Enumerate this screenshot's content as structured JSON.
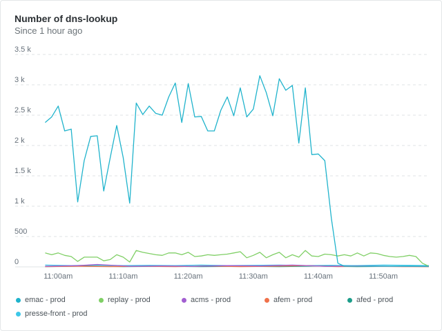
{
  "header": {
    "title": "Number of dns-lookup",
    "subtitle": "Since 1 hour ago"
  },
  "chart_data": {
    "type": "line",
    "title": "Number of dns-lookup",
    "subtitle": "Since 1 hour ago",
    "xlabel": "",
    "ylabel": "",
    "ylim": [
      0,
      3500
    ],
    "y_ticks": [
      0,
      500,
      1000,
      1500,
      2000,
      2500,
      3000,
      3500
    ],
    "y_tick_labels": [
      "0",
      "500",
      "1 k",
      "1.5 k",
      "2 k",
      "2.5 k",
      "3 k",
      "3.5 k"
    ],
    "x_range": [
      "10:57am",
      "11:57am"
    ],
    "x_ticks": [
      "11:00am",
      "11:10am",
      "11:20am",
      "11:30am",
      "11:40am",
      "11:50am"
    ],
    "grid": true,
    "legend_position": "bottom",
    "series": [
      {
        "name": "emac - prod",
        "color": "#1fb3cc",
        "x": [
          "10:58",
          "10:59",
          "11:00",
          "11:01",
          "11:02",
          "11:03",
          "11:04",
          "11:05",
          "11:06",
          "11:07",
          "11:08",
          "11:09",
          "11:10",
          "11:11",
          "11:12",
          "11:13",
          "11:14",
          "11:15",
          "11:16",
          "11:17",
          "11:18",
          "11:19",
          "11:20",
          "11:21",
          "11:22",
          "11:23",
          "11:24",
          "11:25",
          "11:26",
          "11:27",
          "11:28",
          "11:29",
          "11:30",
          "11:31",
          "11:32",
          "11:33",
          "11:34",
          "11:35",
          "11:36",
          "11:37",
          "11:38",
          "11:39",
          "11:40",
          "11:41",
          "11:42",
          "11:43",
          "11:44",
          "11:45",
          "11:46",
          "11:47",
          "11:48",
          "11:49",
          "11:50",
          "11:51",
          "11:52",
          "11:53",
          "11:54",
          "11:55",
          "11:56",
          "11:57"
        ],
        "values": [
          2380,
          2470,
          2650,
          2240,
          2270,
          1070,
          1750,
          2150,
          2160,
          1250,
          1800,
          2330,
          1800,
          1050,
          2700,
          2510,
          2650,
          2530,
          2500,
          2800,
          3030,
          2380,
          3020,
          2470,
          2480,
          2240,
          2240,
          2580,
          2800,
          2490,
          2950,
          2470,
          2600,
          3150,
          2870,
          2490,
          3100,
          2910,
          2990,
          2040,
          2950,
          1850,
          1860,
          1750,
          800,
          60,
          10,
          10,
          10,
          10,
          10,
          10,
          10,
          10,
          10,
          10,
          10,
          10,
          10,
          10
        ]
      },
      {
        "name": "replay - prod",
        "color": "#7fcf65",
        "x": [
          "10:58",
          "10:59",
          "11:00",
          "11:01",
          "11:02",
          "11:03",
          "11:04",
          "11:05",
          "11:06",
          "11:07",
          "11:08",
          "11:09",
          "11:10",
          "11:11",
          "11:12",
          "11:13",
          "11:14",
          "11:15",
          "11:16",
          "11:17",
          "11:18",
          "11:19",
          "11:20",
          "11:21",
          "11:22",
          "11:23",
          "11:24",
          "11:25",
          "11:26",
          "11:27",
          "11:28",
          "11:29",
          "11:30",
          "11:31",
          "11:32",
          "11:33",
          "11:34",
          "11:35",
          "11:36",
          "11:37",
          "11:38",
          "11:39",
          "11:40",
          "11:41",
          "11:42",
          "11:43",
          "11:44",
          "11:45",
          "11:46",
          "11:47",
          "11:48",
          "11:49",
          "11:50",
          "11:51",
          "11:52",
          "11:53",
          "11:54",
          "11:55",
          "11:56",
          "11:57"
        ],
        "values": [
          230,
          200,
          230,
          190,
          170,
          90,
          160,
          160,
          160,
          100,
          120,
          200,
          160,
          80,
          270,
          240,
          220,
          200,
          190,
          230,
          230,
          200,
          240,
          170,
          180,
          200,
          190,
          200,
          210,
          230,
          250,
          150,
          190,
          240,
          150,
          200,
          240,
          150,
          200,
          160,
          270,
          180,
          170,
          210,
          200,
          180,
          200,
          180,
          230,
          180,
          230,
          220,
          190,
          170,
          160,
          170,
          190,
          170,
          60,
          10
        ]
      },
      {
        "name": "acms - prod",
        "color": "#a25ed1",
        "x": [
          "10:58",
          "11:03",
          "11:06",
          "11:11",
          "11:16",
          "11:21",
          "11:26",
          "11:31",
          "11:36",
          "11:41",
          "11:46",
          "11:51",
          "11:57"
        ],
        "values": [
          10,
          20,
          40,
          10,
          15,
          10,
          20,
          15,
          30,
          10,
          15,
          10,
          10
        ]
      },
      {
        "name": "afem - prod",
        "color": "#f0714a",
        "x": [
          "10:58",
          "11:03",
          "11:08",
          "11:13",
          "11:18",
          "11:23",
          "11:28",
          "11:33",
          "11:38",
          "11:43",
          "11:48",
          "11:53",
          "11:57"
        ],
        "values": [
          5,
          10,
          5,
          10,
          5,
          15,
          5,
          10,
          20,
          5,
          10,
          5,
          5
        ]
      },
      {
        "name": "afed - prod",
        "color": "#1c9d8a",
        "x": [
          "10:58",
          "11:04",
          "11:10",
          "11:16",
          "11:22",
          "11:28",
          "11:34",
          "11:40",
          "11:46",
          "11:52",
          "11:57"
        ],
        "values": [
          5,
          15,
          5,
          10,
          5,
          10,
          5,
          15,
          5,
          10,
          5
        ]
      },
      {
        "name": "presse-front - prod",
        "color": "#3dc7e8",
        "x": [
          "10:58",
          "11:02",
          "11:06",
          "11:10",
          "11:14",
          "11:18",
          "11:22",
          "11:26",
          "11:30",
          "11:34",
          "11:38",
          "11:42",
          "11:46",
          "11:50",
          "11:54",
          "11:57"
        ],
        "values": [
          30,
          20,
          30,
          20,
          25,
          20,
          30,
          20,
          25,
          30,
          20,
          25,
          20,
          30,
          25,
          20
        ]
      }
    ]
  }
}
